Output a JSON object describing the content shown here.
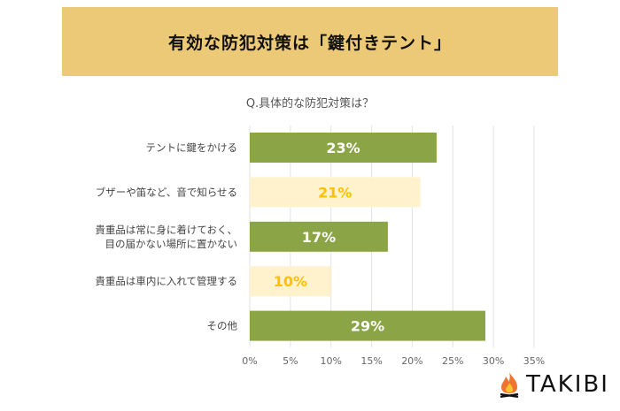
{
  "title": "有効な防犯対策は「鍵付きテント」",
  "logo_text": "TAKIBI",
  "chart_data": {
    "type": "bar",
    "orientation": "horizontal",
    "title": "Q.具体的な防犯対策は？",
    "categories": [
      "テントに鍵をかける",
      "ブザーや笛など、音で知らせる",
      "貴重品は常に身に着けておく、\n目の届かない場所に置かない",
      "貴重品は車内に入れて管理する",
      "その他"
    ],
    "values": [
      23,
      21,
      17,
      10,
      29
    ],
    "data_labels": [
      "23%",
      "21%",
      "17%",
      "10%",
      "29%"
    ],
    "bar_colors": [
      "#8ba446",
      "#fff2cc",
      "#8ba446",
      "#fff2cc",
      "#8ba446"
    ],
    "label_colors": [
      "#ffffff",
      "#ffc000",
      "#ffffff",
      "#ffc000",
      "#ffffff"
    ],
    "xlim": [
      0,
      35
    ],
    "ticks": [
      "0%",
      "5%",
      "10%",
      "15%",
      "20%",
      "25%",
      "30%",
      "35%"
    ],
    "grid": true
  }
}
